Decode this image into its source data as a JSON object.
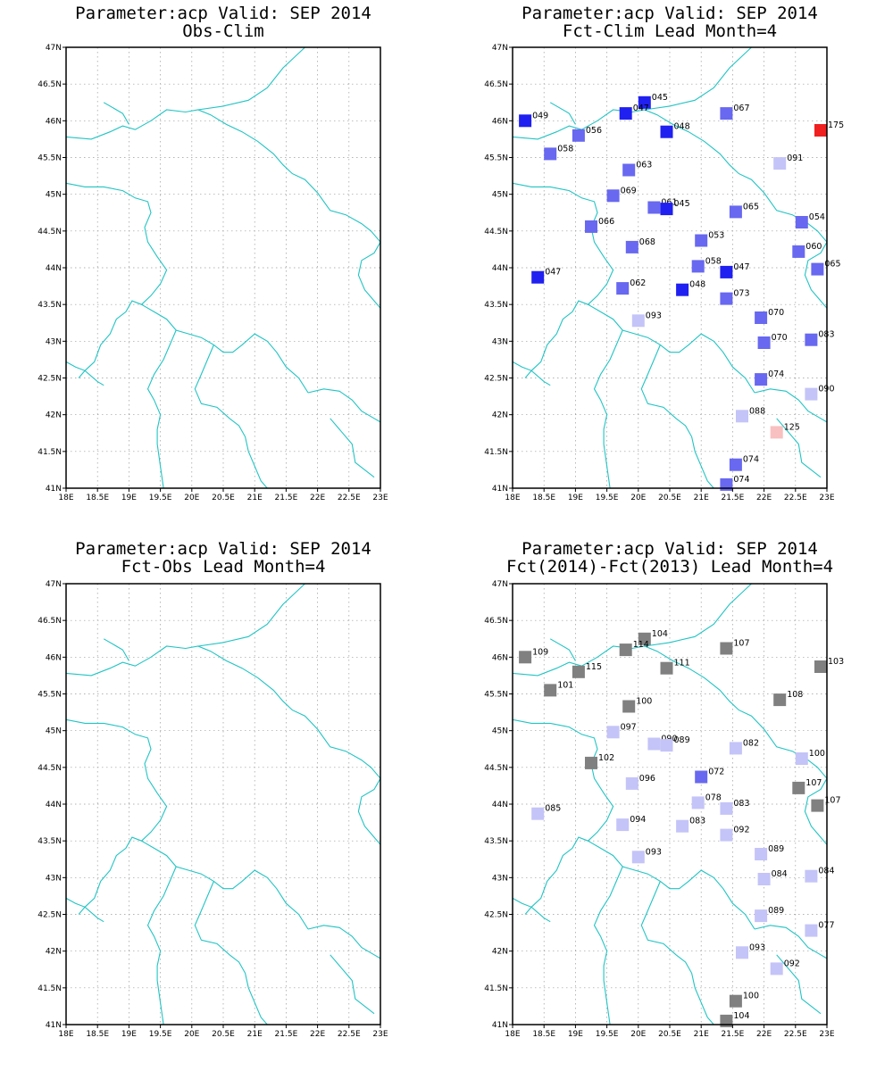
{
  "colors": {
    "border": "#21c4c4",
    "grid": "#9a9a9a",
    "frame": "#000000",
    "neg_strong": "#2020f0",
    "neg_medium": "#6868f0",
    "neg_light": "#c4c4f8",
    "pos_light": "#f8c0c0",
    "pos_strong": "#f02020",
    "neutral": "#808080"
  },
  "axes": {
    "lon_ticks": [
      "18E",
      "18.5E",
      "19E",
      "19.5E",
      "20E",
      "20.5E",
      "21E",
      "21.5E",
      "22E",
      "22.5E",
      "23E"
    ],
    "lat_ticks": [
      "41N",
      "41.5N",
      "42N",
      "42.5N",
      "43N",
      "43.5N",
      "44N",
      "44.5N",
      "45N",
      "45.5N",
      "46N",
      "46.5N",
      "47N"
    ],
    "lon_range": [
      18,
      23
    ],
    "lat_range": [
      41,
      47
    ]
  },
  "panels": [
    {
      "title1": "Parameter:acp Valid: SEP 2014",
      "title2": "Obs-Clim",
      "stations": []
    },
    {
      "title1": "Parameter:acp Valid: SEP 2014",
      "title2": "Fct-Clim Lead Month=4",
      "stations": [
        {
          "lon": 18.2,
          "lat": 46.0,
          "label": "049",
          "cls": "neg_strong"
        },
        {
          "lon": 20.1,
          "lat": 46.25,
          "label": "045",
          "cls": "neg_strong"
        },
        {
          "lon": 19.8,
          "lat": 46.1,
          "label": "047",
          "cls": "neg_strong"
        },
        {
          "lon": 21.4,
          "lat": 46.1,
          "label": "067",
          "cls": "neg_medium"
        },
        {
          "lon": 22.9,
          "lat": 45.87,
          "label": "175",
          "cls": "pos_strong"
        },
        {
          "lon": 19.05,
          "lat": 45.8,
          "label": "056",
          "cls": "neg_medium"
        },
        {
          "lon": 20.45,
          "lat": 45.85,
          "label": "048",
          "cls": "neg_strong"
        },
        {
          "lon": 18.6,
          "lat": 45.55,
          "label": "058",
          "cls": "neg_medium"
        },
        {
          "lon": 22.25,
          "lat": 45.42,
          "label": "091",
          "cls": "neg_light"
        },
        {
          "lon": 19.85,
          "lat": 45.33,
          "label": "063",
          "cls": "neg_medium"
        },
        {
          "lon": 19.6,
          "lat": 44.98,
          "label": "069",
          "cls": "neg_medium"
        },
        {
          "lon": 20.25,
          "lat": 44.82,
          "label": "061",
          "cls": "neg_medium"
        },
        {
          "lon": 20.45,
          "lat": 44.8,
          "label": "045",
          "cls": "neg_strong"
        },
        {
          "lon": 21.55,
          "lat": 44.76,
          "label": "065",
          "cls": "neg_medium"
        },
        {
          "lon": 22.6,
          "lat": 44.62,
          "label": "054",
          "cls": "neg_medium"
        },
        {
          "lon": 19.25,
          "lat": 44.56,
          "label": "066",
          "cls": "neg_medium"
        },
        {
          "lon": 21.0,
          "lat": 44.37,
          "label": "053",
          "cls": "neg_medium"
        },
        {
          "lon": 19.9,
          "lat": 44.28,
          "label": "068",
          "cls": "neg_medium"
        },
        {
          "lon": 22.55,
          "lat": 44.22,
          "label": "060",
          "cls": "neg_medium"
        },
        {
          "lon": 20.95,
          "lat": 44.02,
          "label": "058",
          "cls": "neg_medium"
        },
        {
          "lon": 21.4,
          "lat": 43.94,
          "label": "047",
          "cls": "neg_strong"
        },
        {
          "lon": 22.85,
          "lat": 43.98,
          "label": "065",
          "cls": "neg_medium"
        },
        {
          "lon": 18.4,
          "lat": 43.87,
          "label": "047",
          "cls": "neg_strong"
        },
        {
          "lon": 19.75,
          "lat": 43.72,
          "label": "062",
          "cls": "neg_medium"
        },
        {
          "lon": 20.7,
          "lat": 43.7,
          "label": "048",
          "cls": "neg_strong"
        },
        {
          "lon": 21.4,
          "lat": 43.58,
          "label": "073",
          "cls": "neg_medium"
        },
        {
          "lon": 21.95,
          "lat": 43.32,
          "label": "070",
          "cls": "neg_medium"
        },
        {
          "lon": 20.0,
          "lat": 43.28,
          "label": "093",
          "cls": "neg_light"
        },
        {
          "lon": 22.0,
          "lat": 42.98,
          "label": "070",
          "cls": "neg_medium"
        },
        {
          "lon": 22.75,
          "lat": 43.02,
          "label": "083",
          "cls": "neg_medium"
        },
        {
          "lon": 21.95,
          "lat": 42.48,
          "label": "074",
          "cls": "neg_medium"
        },
        {
          "lon": 22.75,
          "lat": 42.28,
          "label": "090",
          "cls": "neg_light"
        },
        {
          "lon": 21.65,
          "lat": 41.98,
          "label": "088",
          "cls": "neg_light"
        },
        {
          "lon": 22.2,
          "lat": 41.76,
          "label": "125",
          "cls": "pos_light"
        },
        {
          "lon": 21.55,
          "lat": 41.32,
          "label": "074",
          "cls": "neg_medium"
        },
        {
          "lon": 21.4,
          "lat": 41.05,
          "label": "074",
          "cls": "neg_medium"
        }
      ]
    },
    {
      "title1": "Parameter:acp Valid: SEP 2014",
      "title2": "Fct-Obs Lead Month=4",
      "stations": []
    },
    {
      "title1": "Parameter:acp Valid: SEP 2014",
      "title2": "Fct(2014)-Fct(2013) Lead Month=4",
      "stations": [
        {
          "lon": 18.2,
          "lat": 46.0,
          "label": "109",
          "cls": "neutral"
        },
        {
          "lon": 20.1,
          "lat": 46.25,
          "label": "104",
          "cls": "neutral"
        },
        {
          "lon": 19.8,
          "lat": 46.1,
          "label": "114",
          "cls": "neutral"
        },
        {
          "lon": 21.4,
          "lat": 46.12,
          "label": "107",
          "cls": "neutral"
        },
        {
          "lon": 22.9,
          "lat": 45.87,
          "label": "103",
          "cls": "neutral"
        },
        {
          "lon": 19.05,
          "lat": 45.8,
          "label": "115",
          "cls": "neutral"
        },
        {
          "lon": 20.45,
          "lat": 45.85,
          "label": "111",
          "cls": "neutral"
        },
        {
          "lon": 18.6,
          "lat": 45.55,
          "label": "101",
          "cls": "neutral"
        },
        {
          "lon": 22.25,
          "lat": 45.42,
          "label": "108",
          "cls": "neutral"
        },
        {
          "lon": 19.85,
          "lat": 45.33,
          "label": "100",
          "cls": "neutral"
        },
        {
          "lon": 19.6,
          "lat": 44.98,
          "label": "097",
          "cls": "neg_light"
        },
        {
          "lon": 20.25,
          "lat": 44.82,
          "label": "090",
          "cls": "neg_light"
        },
        {
          "lon": 20.45,
          "lat": 44.8,
          "label": "089",
          "cls": "neg_light"
        },
        {
          "lon": 21.55,
          "lat": 44.76,
          "label": "082",
          "cls": "neg_light"
        },
        {
          "lon": 22.6,
          "lat": 44.62,
          "label": "100",
          "cls": "neg_light"
        },
        {
          "lon": 19.25,
          "lat": 44.56,
          "label": "102",
          "cls": "neutral"
        },
        {
          "lon": 21.0,
          "lat": 44.37,
          "label": "072",
          "cls": "neg_medium"
        },
        {
          "lon": 19.9,
          "lat": 44.28,
          "label": "096",
          "cls": "neg_light"
        },
        {
          "lon": 22.55,
          "lat": 44.22,
          "label": "107",
          "cls": "neutral"
        },
        {
          "lon": 20.95,
          "lat": 44.02,
          "label": "078",
          "cls": "neg_light"
        },
        {
          "lon": 21.4,
          "lat": 43.94,
          "label": "083",
          "cls": "neg_light"
        },
        {
          "lon": 22.85,
          "lat": 43.98,
          "label": "107",
          "cls": "neutral"
        },
        {
          "lon": 18.4,
          "lat": 43.87,
          "label": "085",
          "cls": "neg_light"
        },
        {
          "lon": 19.75,
          "lat": 43.72,
          "label": "094",
          "cls": "neg_light"
        },
        {
          "lon": 20.7,
          "lat": 43.7,
          "label": "083",
          "cls": "neg_light"
        },
        {
          "lon": 21.4,
          "lat": 43.58,
          "label": "092",
          "cls": "neg_light"
        },
        {
          "lon": 21.95,
          "lat": 43.32,
          "label": "089",
          "cls": "neg_light"
        },
        {
          "lon": 20.0,
          "lat": 43.28,
          "label": "093",
          "cls": "neg_light"
        },
        {
          "lon": 22.0,
          "lat": 42.98,
          "label": "084",
          "cls": "neg_light"
        },
        {
          "lon": 22.75,
          "lat": 43.02,
          "label": "084",
          "cls": "neg_light"
        },
        {
          "lon": 21.95,
          "lat": 42.48,
          "label": "089",
          "cls": "neg_light"
        },
        {
          "lon": 22.75,
          "lat": 42.28,
          "label": "077",
          "cls": "neg_light"
        },
        {
          "lon": 21.65,
          "lat": 41.98,
          "label": "093",
          "cls": "neg_light"
        },
        {
          "lon": 22.2,
          "lat": 41.76,
          "label": "092",
          "cls": "neg_light"
        },
        {
          "lon": 21.55,
          "lat": 41.32,
          "label": "100",
          "cls": "neutral"
        },
        {
          "lon": 21.4,
          "lat": 41.05,
          "label": "104",
          "cls": "neutral"
        }
      ]
    }
  ]
}
